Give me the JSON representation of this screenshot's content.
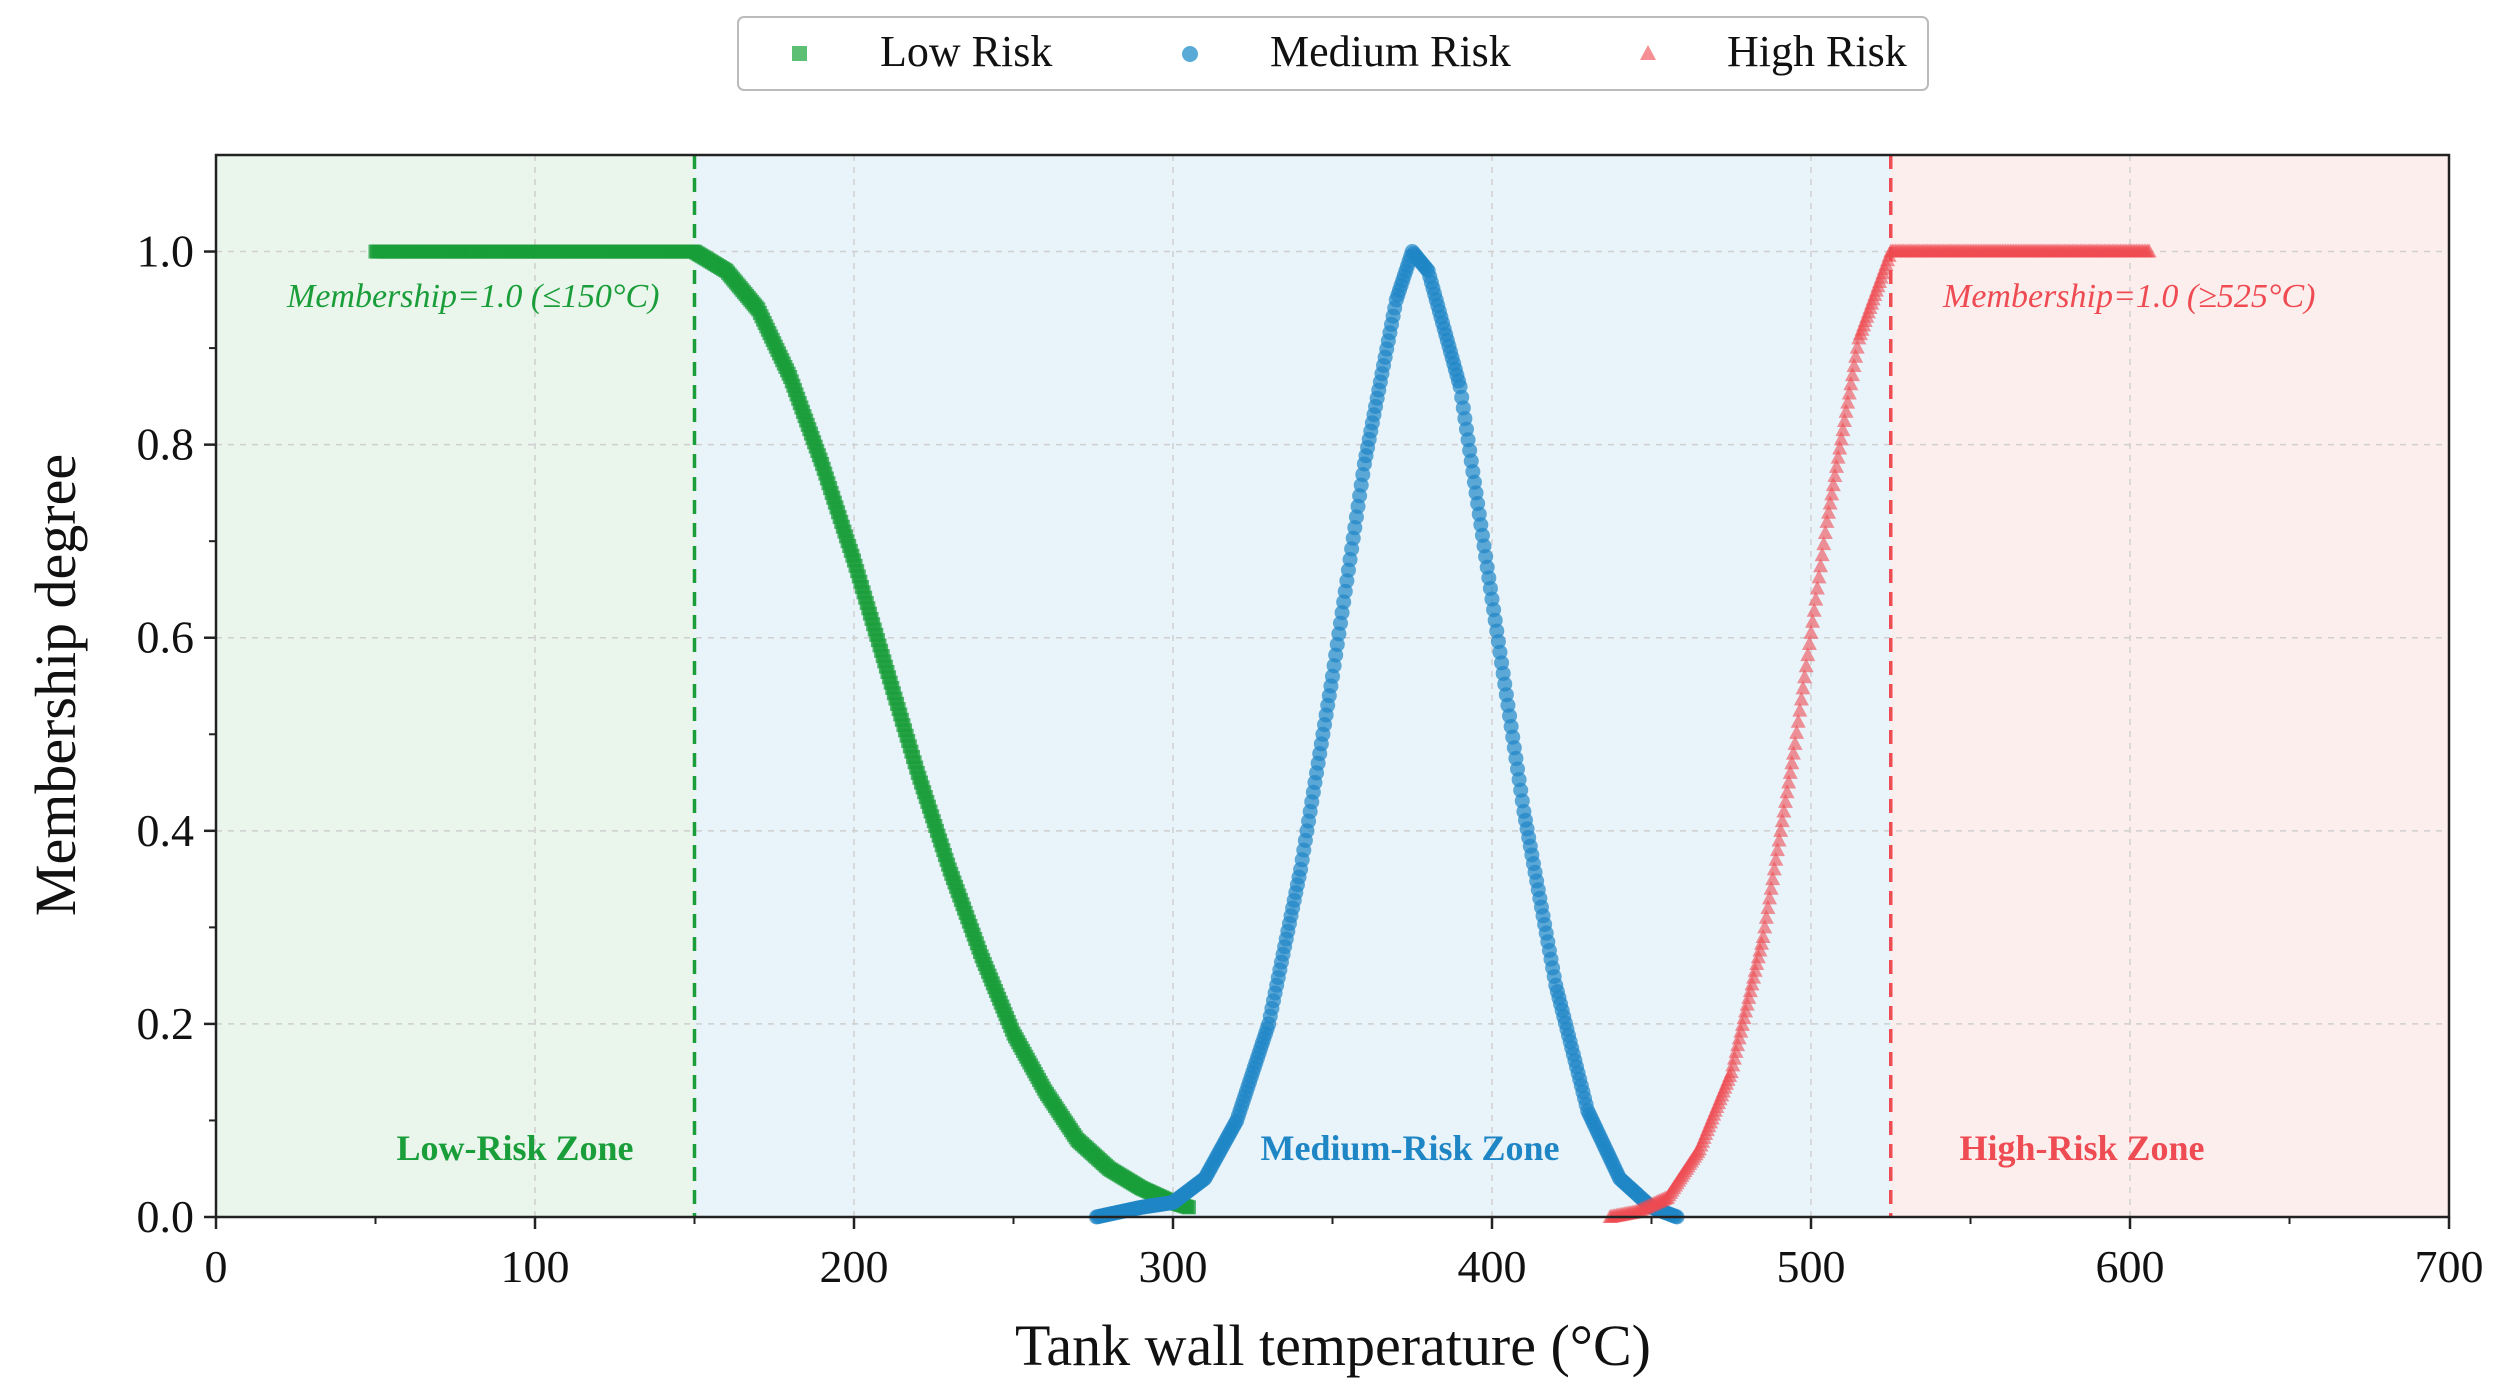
{
  "chart_data": {
    "type": "scatter",
    "title": "",
    "xlabel": "Tank wall temperature (°C)",
    "ylabel": "Membership degree",
    "xlim": [
      0,
      700
    ],
    "ylim": [
      0,
      1.1
    ],
    "xticks": [
      0,
      100,
      200,
      300,
      400,
      500,
      600,
      700
    ],
    "yticks": [
      0.0,
      0.2,
      0.4,
      0.6,
      0.8,
      1.0
    ],
    "ytick_labels": [
      "0.0",
      "0.2",
      "0.4",
      "0.6",
      "0.8",
      "1.0"
    ],
    "grid": true,
    "legend_position": "top-center",
    "series": [
      {
        "name": "Low Risk",
        "marker": "square",
        "color": "#1a9e3a",
        "points": [
          [
            50,
            1.0
          ],
          [
            60,
            1.0
          ],
          [
            70,
            1.0
          ],
          [
            80,
            1.0
          ],
          [
            90,
            1.0
          ],
          [
            100,
            1.0
          ],
          [
            110,
            1.0
          ],
          [
            120,
            1.0
          ],
          [
            130,
            1.0
          ],
          [
            140,
            1.0
          ],
          [
            150,
            1.0
          ],
          [
            160,
            0.98
          ],
          [
            170,
            0.94
          ],
          [
            180,
            0.87
          ],
          [
            190,
            0.78
          ],
          [
            200,
            0.68
          ],
          [
            210,
            0.57
          ],
          [
            220,
            0.46
          ],
          [
            230,
            0.36
          ],
          [
            240,
            0.27
          ],
          [
            250,
            0.19
          ],
          [
            260,
            0.13
          ],
          [
            270,
            0.08
          ],
          [
            280,
            0.05
          ],
          [
            290,
            0.03
          ],
          [
            300,
            0.015
          ],
          [
            305,
            0.01
          ]
        ]
      },
      {
        "name": "Medium Risk",
        "marker": "circle",
        "color": "#1f86c6",
        "points": [
          [
            276,
            0.0
          ],
          [
            290,
            0.01
          ],
          [
            300,
            0.015
          ],
          [
            310,
            0.04
          ],
          [
            320,
            0.1
          ],
          [
            330,
            0.2
          ],
          [
            340,
            0.36
          ],
          [
            350,
            0.56
          ],
          [
            360,
            0.78
          ],
          [
            370,
            0.95
          ],
          [
            375,
            1.0
          ],
          [
            380,
            0.98
          ],
          [
            390,
            0.86
          ],
          [
            400,
            0.64
          ],
          [
            410,
            0.42
          ],
          [
            420,
            0.24
          ],
          [
            430,
            0.11
          ],
          [
            440,
            0.04
          ],
          [
            450,
            0.01
          ],
          [
            458,
            0.0
          ]
        ]
      },
      {
        "name": "High Risk",
        "marker": "triangle",
        "color": "#ee4b52",
        "points": [
          [
            437,
            0.0
          ],
          [
            445,
            0.005
          ],
          [
            455,
            0.02
          ],
          [
            465,
            0.07
          ],
          [
            475,
            0.15
          ],
          [
            485,
            0.29
          ],
          [
            495,
            0.49
          ],
          [
            505,
            0.72
          ],
          [
            515,
            0.91
          ],
          [
            525,
            1.0
          ],
          [
            535,
            1.0
          ],
          [
            545,
            1.0
          ],
          [
            555,
            1.0
          ],
          [
            565,
            1.0
          ],
          [
            575,
            1.0
          ],
          [
            585,
            1.0
          ],
          [
            597,
            1.0
          ],
          [
            606,
            1.0
          ]
        ]
      }
    ],
    "thresholds": [
      {
        "x": 150,
        "color": "#1a9e3a",
        "style": "dashed"
      },
      {
        "x": 525,
        "color": "#ee4b52",
        "style": "dashed"
      }
    ],
    "zones": [
      {
        "label": "Low-Risk Zone",
        "x_range": [
          0,
          150
        ],
        "fill": "#eaf5ec",
        "color": "#1a9e3a"
      },
      {
        "label": "Medium-Risk Zone",
        "x_range": [
          150,
          525
        ],
        "fill": "#e8f3fa",
        "color": "#1f86c6"
      },
      {
        "label": "High-Risk Zone",
        "x_range": [
          525,
          700
        ],
        "fill": "#fdeeee",
        "color": "#ee4b52"
      }
    ],
    "annotations": [
      {
        "text": "Membership=1.0 (≤150°C)",
        "color": "#1a9e3a"
      },
      {
        "text": "Membership=1.0 (≥525°C)",
        "color": "#ee4b52"
      }
    ]
  }
}
